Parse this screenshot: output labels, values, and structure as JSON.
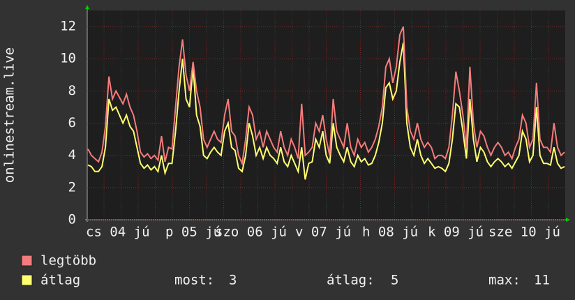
{
  "chart_data": {
    "type": "line",
    "y_axis_label": "onlinestream.live",
    "x_labels": [
      "cs 04 jú",
      "p 05 jú",
      "szo 06 jú",
      "v 07 jú",
      "h 08 jú",
      "k 09 jú",
      "sze 10 jú"
    ],
    "ylim": [
      0,
      13
    ],
    "yticks": [
      0,
      2,
      4,
      6,
      8,
      10,
      12
    ],
    "grid": true,
    "series": [
      {
        "name": "legtöbb",
        "color": "#f47c7c",
        "values": [
          4.4,
          4.0,
          3.8,
          3.6,
          4.2,
          5.8,
          8.9,
          7.5,
          8.0,
          7.6,
          7.2,
          7.8,
          7.0,
          6.5,
          5.5,
          4.2,
          3.9,
          4.1,
          3.8,
          4.0,
          3.7,
          5.2,
          3.6,
          4.5,
          4.4,
          7.0,
          9.5,
          11.2,
          9.0,
          8.0,
          9.8,
          8.0,
          7.0,
          5.0,
          4.5,
          5.0,
          5.5,
          5.0,
          4.8,
          6.5,
          7.5,
          5.5,
          5.2,
          4.0,
          3.5,
          5.0,
          7.0,
          6.5,
          5.0,
          5.5,
          4.5,
          5.5,
          5.0,
          4.5,
          4.2,
          5.5,
          4.5,
          4.0,
          5.0,
          4.5,
          3.8,
          7.2,
          4.0,
          4.2,
          4.5,
          6.0,
          5.5,
          6.5,
          5.0,
          4.0,
          7.5,
          5.5,
          5.0,
          4.5,
          6.0,
          4.5,
          4.0,
          5.0,
          4.5,
          4.8,
          4.2,
          4.5,
          5.0,
          5.8,
          7.0,
          9.5,
          10.0,
          8.5,
          9.5,
          11.5,
          12.0,
          7.0,
          5.5,
          5.0,
          6.0,
          5.0,
          4.5,
          4.8,
          4.5,
          3.8,
          4.0,
          4.0,
          3.8,
          4.5,
          6.5,
          9.2,
          8.0,
          6.5,
          4.5,
          9.5,
          6.0,
          4.5,
          5.5,
          5.2,
          4.5,
          4.0,
          4.5,
          4.8,
          4.5,
          4.0,
          4.2,
          3.8,
          4.5,
          5.0,
          6.5,
          6.0,
          4.5,
          5.0,
          8.5,
          5.0,
          4.5,
          4.5,
          4.2,
          6.0,
          4.5,
          4.0,
          4.2
        ]
      },
      {
        "name": "átlag",
        "color": "#ffff70",
        "values": [
          3.4,
          3.3,
          3.0,
          3.0,
          3.3,
          4.5,
          7.5,
          6.8,
          7.0,
          6.5,
          6.0,
          6.5,
          5.8,
          5.5,
          4.5,
          3.5,
          3.2,
          3.4,
          3.1,
          3.3,
          3.0,
          4.0,
          2.9,
          3.5,
          3.5,
          5.5,
          8.0,
          10.0,
          7.5,
          7.0,
          9.5,
          6.5,
          5.8,
          4.0,
          3.8,
          4.2,
          4.5,
          4.2,
          4.0,
          5.5,
          6.0,
          4.5,
          4.3,
          3.2,
          3.0,
          4.0,
          6.0,
          5.2,
          4.0,
          4.5,
          3.8,
          4.5,
          4.0,
          3.8,
          3.5,
          4.5,
          3.6,
          3.3,
          4.0,
          3.5,
          3.0,
          4.5,
          2.5,
          3.5,
          3.6,
          5.0,
          4.5,
          5.5,
          4.0,
          3.5,
          6.0,
          4.5,
          4.0,
          3.6,
          4.5,
          3.6,
          3.3,
          4.0,
          3.6,
          3.8,
          3.4,
          3.5,
          4.0,
          4.8,
          6.0,
          8.2,
          8.5,
          7.5,
          8.0,
          9.8,
          11.0,
          6.0,
          4.5,
          4.0,
          5.0,
          4.0,
          3.5,
          3.8,
          3.5,
          3.2,
          3.3,
          3.2,
          3.0,
          3.5,
          5.0,
          7.2,
          7.0,
          5.5,
          3.8,
          7.5,
          5.0,
          3.6,
          4.5,
          4.2,
          3.6,
          3.3,
          3.6,
          3.8,
          3.6,
          3.3,
          3.5,
          3.2,
          3.6,
          4.0,
          5.5,
          5.0,
          3.6,
          4.0,
          7.0,
          4.0,
          3.5,
          3.5,
          3.4,
          4.5,
          3.5,
          3.2,
          3.3
        ]
      }
    ],
    "stats": [
      {
        "label": "most:",
        "value": 3
      },
      {
        "label": "átlag:",
        "value": 5
      },
      {
        "label": "max:",
        "value": 11
      }
    ]
  }
}
